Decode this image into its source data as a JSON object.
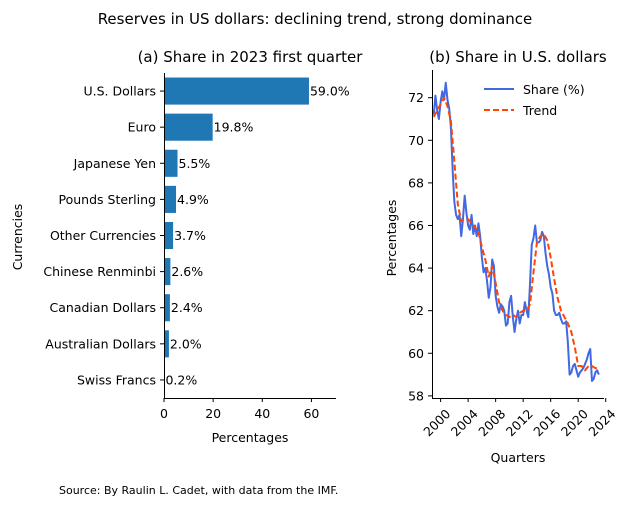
{
  "figure": {
    "suptitle": "Reserves in US dollars: declining trend, strong dominance",
    "source": "Source: By Raulin L. Cadet, with data from the IMF."
  },
  "chart_data": [
    {
      "type": "bar",
      "orientation": "horizontal",
      "title": "(a) Share in 2023 first quarter",
      "xlabel": "Percentages",
      "ylabel": "Currencies",
      "xlim": [
        0,
        70
      ],
      "xticks": [
        0,
        20,
        40,
        60
      ],
      "color": "#1f77b4",
      "categories": [
        "U.S. Dollars",
        "Euro",
        "Japanese Yen",
        "Pounds Sterling",
        "Other Currencies",
        "Chinese Renminbi",
        "Canadian Dollars",
        "Australian Dollars",
        "Swiss Francs"
      ],
      "values": [
        59.0,
        19.8,
        5.5,
        4.9,
        3.7,
        2.6,
        2.4,
        2.0,
        0.2
      ],
      "data_labels": [
        "59.0%",
        "19.8%",
        "5.5%",
        "4.9%",
        "3.7%",
        "2.6%",
        "2.4%",
        "2.0%",
        "0.2%"
      ]
    },
    {
      "type": "line",
      "title": "(b) Share in U.S. dollars",
      "xlabel": "Quarters",
      "ylabel": "Percentages",
      "xlim": [
        1998.75,
        2023.75
      ],
      "ylim": [
        57.9,
        73.3
      ],
      "xticks": [
        2000,
        2004,
        2008,
        2012,
        2016,
        2020,
        2024
      ],
      "yticks": [
        58,
        60,
        62,
        64,
        66,
        68,
        70,
        72
      ],
      "legend_position": "top-right",
      "series": [
        {
          "name": "Share (%)",
          "color": "#4169e1",
          "style": "solid",
          "x": [
            1999.0,
            1999.25,
            1999.5,
            1999.75,
            2000.0,
            2000.25,
            2000.5,
            2000.75,
            2001.0,
            2001.25,
            2001.5,
            2001.75,
            2002.0,
            2002.25,
            2002.5,
            2002.75,
            2003.0,
            2003.25,
            2003.5,
            2003.75,
            2004.0,
            2004.25,
            2004.5,
            2004.75,
            2005.0,
            2005.25,
            2005.5,
            2005.75,
            2006.0,
            2006.25,
            2006.5,
            2006.75,
            2007.0,
            2007.25,
            2007.5,
            2007.75,
            2008.0,
            2008.25,
            2008.5,
            2008.75,
            2009.0,
            2009.25,
            2009.5,
            2009.75,
            2010.0,
            2010.25,
            2010.5,
            2010.75,
            2011.0,
            2011.25,
            2011.5,
            2011.75,
            2012.0,
            2012.25,
            2012.5,
            2012.75,
            2013.0,
            2013.25,
            2013.5,
            2013.75,
            2014.0,
            2014.25,
            2014.5,
            2014.75,
            2015.0,
            2015.25,
            2015.5,
            2015.75,
            2016.0,
            2016.25,
            2016.5,
            2016.75,
            2017.0,
            2017.25,
            2017.5,
            2017.75,
            2018.0,
            2018.25,
            2018.5,
            2018.75,
            2019.0,
            2019.25,
            2019.5,
            2019.75,
            2020.0,
            2020.25,
            2020.5,
            2020.75,
            2021.0,
            2021.25,
            2021.5,
            2021.75,
            2022.0,
            2022.25,
            2022.5,
            2022.75,
            2023.0
          ],
          "values": [
            71.2,
            72.1,
            71.4,
            71.0,
            71.8,
            72.3,
            71.9,
            72.7,
            71.9,
            71.5,
            70.6,
            68.6,
            67.1,
            66.5,
            66.3,
            66.5,
            65.5,
            66.3,
            67.4,
            66.6,
            66.0,
            65.8,
            66.5,
            65.6,
            66.0,
            65.5,
            66.1,
            65.5,
            64.5,
            63.8,
            64.0,
            63.4,
            62.6,
            63.1,
            64.4,
            64.1,
            62.7,
            62.2,
            61.9,
            62.3,
            62.2,
            62.0,
            61.3,
            61.4,
            62.4,
            62.7,
            61.7,
            61.0,
            61.6,
            62.0,
            61.4,
            61.8,
            61.8,
            62.4,
            62.0,
            61.7,
            63.3,
            65.1,
            65.4,
            66.0,
            65.2,
            65.2,
            65.3,
            65.7,
            65.5,
            64.7,
            64.1,
            63.7,
            63.1,
            62.8,
            62.0,
            61.8,
            61.8,
            61.9,
            61.6,
            61.4,
            61.4,
            61.5,
            60.5,
            59.0,
            59.1,
            59.4,
            59.5,
            59.2,
            58.9,
            59.1,
            59.2,
            59.3,
            59.5,
            59.7,
            60.0,
            60.2,
            58.7,
            58.8,
            59.1,
            59.2,
            59.0
          ]
        },
        {
          "name": "Trend",
          "color": "#ff4500",
          "style": "dashed",
          "x": [
            1999.0,
            1999.5,
            2000.0,
            2000.5,
            2001.0,
            2001.5,
            2002.0,
            2002.5,
            2003.0,
            2003.5,
            2004.0,
            2004.5,
            2005.0,
            2005.5,
            2006.0,
            2006.5,
            2007.0,
            2007.5,
            2008.0,
            2008.5,
            2009.0,
            2009.5,
            2010.0,
            2010.5,
            2011.0,
            2011.5,
            2012.0,
            2012.5,
            2013.0,
            2013.5,
            2014.0,
            2014.5,
            2015.0,
            2015.5,
            2016.0,
            2016.5,
            2017.0,
            2017.5,
            2018.0,
            2018.5,
            2019.0,
            2019.5,
            2020.0,
            2020.5,
            2021.0,
            2021.5,
            2022.0,
            2022.5,
            2023.0
          ],
          "values": [
            71.1,
            71.4,
            71.7,
            72.0,
            71.6,
            70.9,
            69.0,
            67.0,
            66.2,
            66.3,
            66.3,
            66.1,
            65.9,
            65.7,
            65.0,
            64.4,
            63.6,
            64.1,
            63.3,
            62.4,
            62.0,
            61.8,
            61.7,
            61.8,
            61.7,
            61.9,
            62.0,
            62.0,
            62.3,
            63.8,
            65.2,
            65.5,
            65.6,
            65.3,
            64.5,
            63.5,
            62.6,
            62.0,
            61.7,
            61.4,
            61.0,
            60.3,
            59.4,
            59.4,
            59.2,
            59.4,
            59.4,
            59.3,
            59.3
          ]
        }
      ]
    }
  ]
}
